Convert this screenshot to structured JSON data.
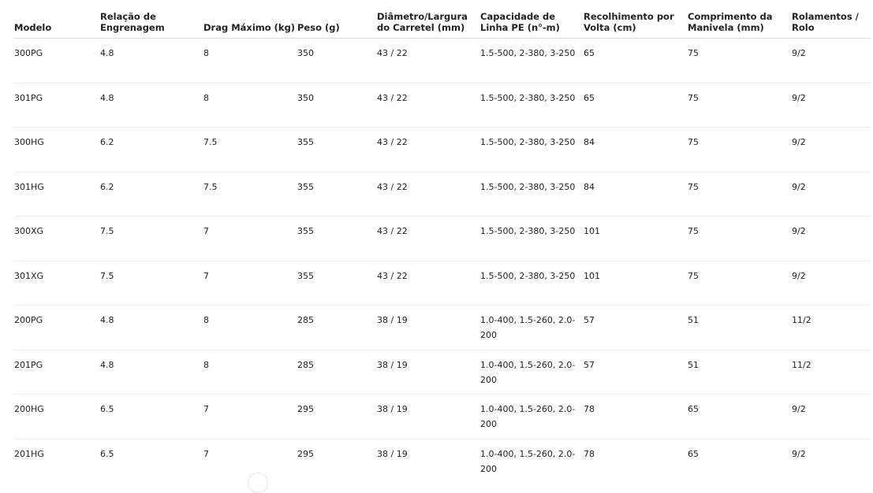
{
  "table": {
    "headers": [
      "Modelo",
      "Relação de Engrenagem",
      "Drag Máximo (kg)",
      "Peso (g)",
      "Diâmetro/Largura do Carretel (mm)",
      "Capacidade de Linha PE (n°-m)",
      "Recolhimento por Volta (cm)",
      "Comprimento da Manivela (mm)",
      "Rolamentos / Rolo"
    ],
    "rows": [
      [
        "300PG",
        "4.8",
        "8",
        "350",
        "43 / 22",
        "1.5-500, 2-380, 3-250",
        "65",
        "75",
        "9/2"
      ],
      [
        "301PG",
        "4.8",
        "8",
        "350",
        "43 / 22",
        "1.5-500, 2-380, 3-250",
        "65",
        "75",
        "9/2"
      ],
      [
        "300HG",
        "6.2",
        "7.5",
        "355",
        "43 / 22",
        "1.5-500, 2-380, 3-250",
        "84",
        "75",
        "9/2"
      ],
      [
        "301HG",
        "6.2",
        "7.5",
        "355",
        "43 / 22",
        "1.5-500, 2-380, 3-250",
        "84",
        "75",
        "9/2"
      ],
      [
        "300XG",
        "7.5",
        "7",
        "355",
        "43 / 22",
        "1.5-500, 2-380, 3-250",
        "101",
        "75",
        "9/2"
      ],
      [
        "301XG",
        "7.5",
        "7",
        "355",
        "43 / 22",
        "1.5-500, 2-380, 3-250",
        "101",
        "75",
        "9/2"
      ],
      [
        "200PG",
        "4.8",
        "8",
        "285",
        "38 / 19",
        "1.0-400, 1.5-260, 2.0-200",
        "57",
        "51",
        "11/2"
      ],
      [
        "201PG",
        "4.8",
        "8",
        "285",
        "38 / 19",
        "1.0-400, 1.5-260, 2.0-200",
        "57",
        "51",
        "11/2"
      ],
      [
        "200HG",
        "6.5",
        "7",
        "295",
        "38 / 19",
        "1.0-400, 1.5-260, 2.0-200",
        "78",
        "65",
        "9/2"
      ],
      [
        "201HG",
        "6.5",
        "7",
        "295",
        "38 / 19",
        "1.0-400, 1.5-260, 2.0-200",
        "78",
        "65",
        "9/2"
      ]
    ]
  }
}
